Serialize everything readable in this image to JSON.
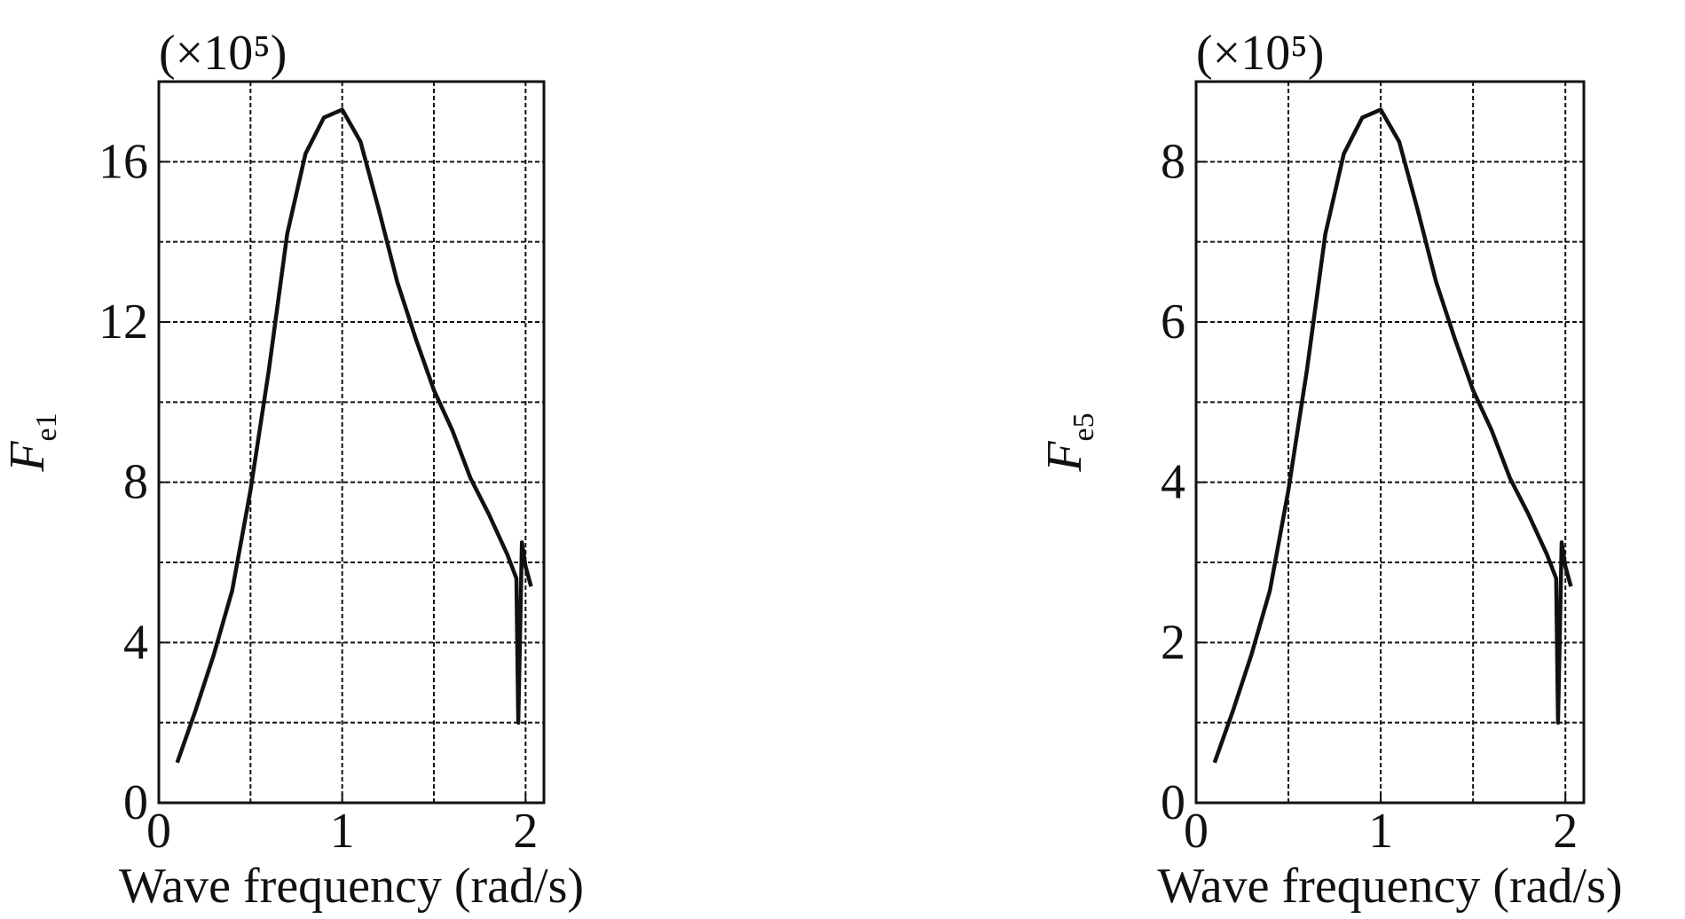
{
  "chart_data": [
    {
      "type": "line",
      "y_unit": "(×10⁵)",
      "ylabel": "F",
      "ylabel_subscript": "e1",
      "xlabel": "Wave frequency (rad/s)",
      "x": [
        0.1,
        0.2,
        0.3,
        0.4,
        0.5,
        0.6,
        0.7,
        0.8,
        0.9,
        1.0,
        1.1,
        1.2,
        1.3,
        1.4,
        1.5,
        1.6,
        1.7,
        1.8,
        1.9,
        1.95,
        1.96,
        1.98,
        2.0,
        2.03
      ],
      "values": [
        1.0,
        2.3,
        3.7,
        5.3,
        7.8,
        10.8,
        14.2,
        16.2,
        17.1,
        17.3,
        16.5,
        14.8,
        13.0,
        11.6,
        10.3,
        9.3,
        8.1,
        7.2,
        6.2,
        5.6,
        2.0,
        6.5,
        5.9,
        5.4
      ],
      "color": "#111111",
      "xlim": [
        0,
        2.1
      ],
      "ylim": [
        0,
        18
      ],
      "xticks": [
        0,
        1,
        2
      ],
      "yticks": [
        0,
        4,
        8,
        12,
        16
      ],
      "minor_xticks": [
        0.5,
        1.5
      ],
      "minor_yticks": [
        2,
        6,
        10,
        14
      ],
      "grid": true
    },
    {
      "type": "line",
      "y_unit": "(×10⁵)",
      "ylabel": "F",
      "ylabel_subscript": "e5",
      "xlabel": "Wave frequency (rad/s)",
      "x": [
        0.1,
        0.2,
        0.3,
        0.4,
        0.5,
        0.6,
        0.7,
        0.8,
        0.9,
        1.0,
        1.1,
        1.2,
        1.3,
        1.4,
        1.5,
        1.6,
        1.7,
        1.8,
        1.9,
        1.95,
        1.96,
        1.98,
        2.0,
        2.03
      ],
      "values": [
        0.5,
        1.15,
        1.85,
        2.65,
        3.9,
        5.4,
        7.1,
        8.1,
        8.55,
        8.65,
        8.25,
        7.4,
        6.5,
        5.8,
        5.15,
        4.65,
        4.05,
        3.6,
        3.1,
        2.8,
        1.0,
        3.25,
        2.95,
        2.7
      ],
      "color": "#111111",
      "xlim": [
        0,
        2.1
      ],
      "ylim": [
        0,
        9
      ],
      "xticks": [
        0,
        1,
        2
      ],
      "yticks": [
        0,
        2,
        4,
        6,
        8
      ],
      "minor_xticks": [
        0.5,
        1.5
      ],
      "minor_yticks": [
        1,
        3,
        5,
        7
      ],
      "grid": true
    }
  ]
}
